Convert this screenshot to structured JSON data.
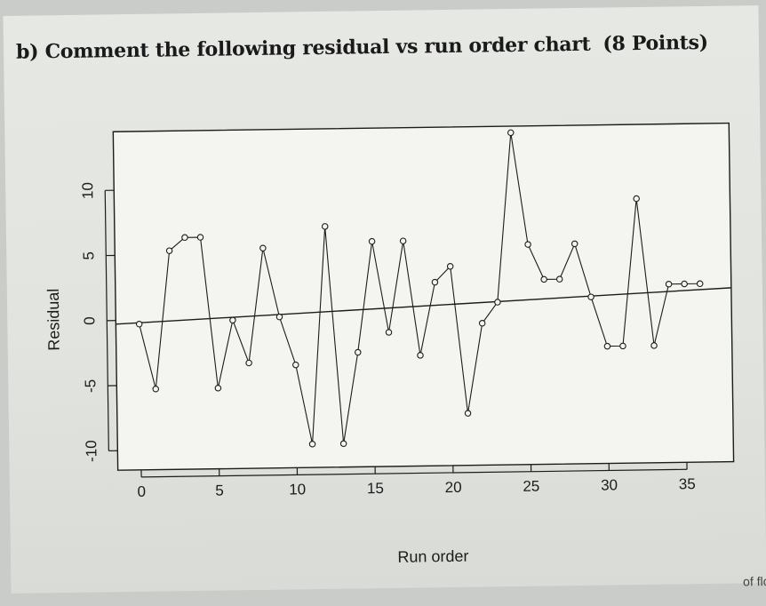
{
  "question": {
    "text": "b) Comment the following residual vs run order chart",
    "points": "(8 Points)"
  },
  "corner_text": "of flo",
  "chart_data": {
    "type": "line",
    "marker": "o",
    "title": "",
    "xlabel": "Run order",
    "ylabel": "Residual",
    "xlim": [
      -1.5,
      38
    ],
    "ylim": [
      -11.5,
      14.5
    ],
    "xticks": [
      0,
      5,
      10,
      15,
      20,
      25,
      30,
      35
    ],
    "yticks": [
      -10,
      -5,
      0,
      5,
      10
    ],
    "grid": false,
    "legend": "none",
    "reference_line": {
      "type": "regression",
      "y_at_x0": -0.2,
      "y_at_x37": 1.8
    },
    "x": [
      0,
      1,
      2,
      3,
      4,
      5,
      6,
      7,
      8,
      9,
      10,
      11,
      12,
      13,
      14,
      15,
      16,
      17,
      18,
      19,
      20,
      21,
      22,
      23,
      24,
      25,
      26,
      27,
      28,
      29,
      30,
      31,
      32,
      33,
      34,
      35,
      36
    ],
    "y": [
      -0.3,
      -5.3,
      5.3,
      6.3,
      6.3,
      -5.3,
      -0.1,
      -3.4,
      5.4,
      0.1,
      -3.6,
      -9.7,
      7.0,
      -9.7,
      -2.7,
      5.8,
      -1.2,
      5.8,
      -3.0,
      2.6,
      3.8,
      -7.5,
      -0.6,
      1.0,
      14.0,
      5.4,
      2.7,
      2.7,
      5.4,
      1.3,
      -2.5,
      -2.5,
      8.8,
      -2.5,
      2.2,
      2.2,
      2.2
    ]
  }
}
